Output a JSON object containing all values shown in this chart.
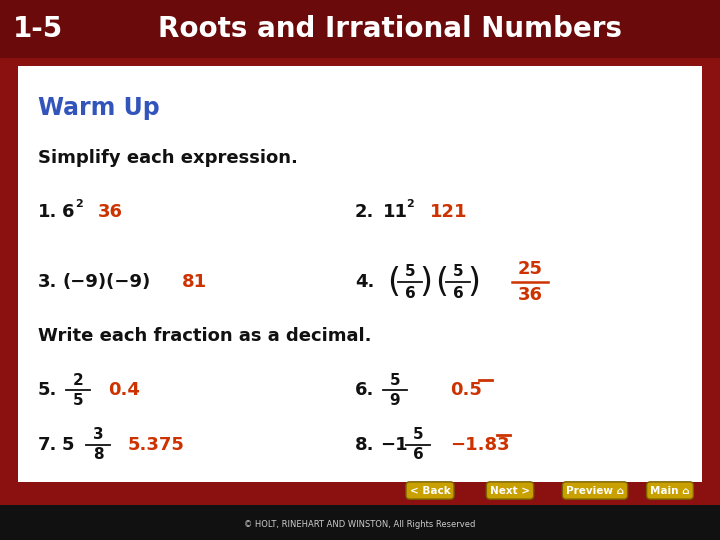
{
  "header_bg": "#6B0A0A",
  "header_text_num": "1-5",
  "header_text_title": "Roots and Irrational Numbers",
  "header_text_color": "#FFFFFF",
  "content_bg": "#FFFFFF",
  "outer_bg": "#8B1010",
  "warm_up_color": "#3355BB",
  "black_text": "#111111",
  "answer_color": "#CC3300",
  "footer_bg": "#111111",
  "footer_text": "© HOLT, RINEHART AND WINSTON, All Rights Reserved",
  "footer_text_color": "#CCCCCC",
  "button_color": "#C8A000",
  "button_text_color": "#FFFFFF"
}
